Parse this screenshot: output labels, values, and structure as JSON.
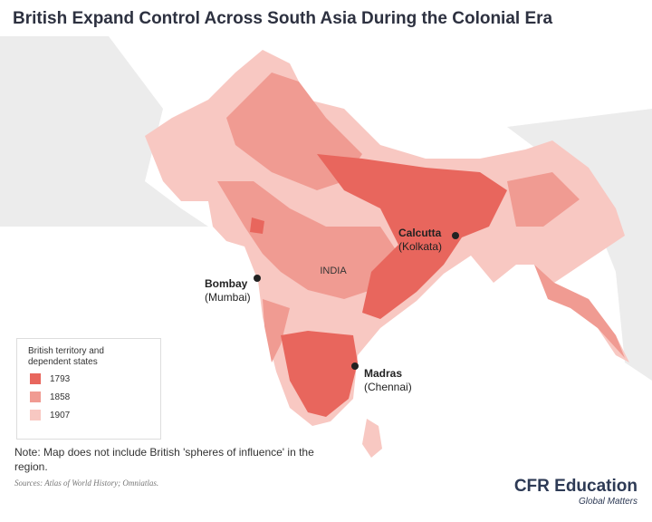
{
  "title": "British Expand Control Across South Asia During the Colonial Era",
  "map": {
    "country_label": "INDIA",
    "cities": [
      {
        "name": "Calcutta",
        "local_name": "(Kolkata)"
      },
      {
        "name": "Bombay",
        "local_name": "(Mumbai)"
      },
      {
        "name": "Madras",
        "local_name": "(Chennai)"
      }
    ]
  },
  "legend": {
    "title": "British territory and dependent states",
    "items": [
      {
        "label": "1793",
        "color": "#e8665d"
      },
      {
        "label": "1858",
        "color": "#f09b92"
      },
      {
        "label": "1907",
        "color": "#f8c8c2"
      }
    ]
  },
  "note": "Note: Map does not include British 'spheres of influence' in the region.",
  "sources": "Sources: Atlas of World History; Omniatlas.",
  "logo": {
    "name": "CFR Education",
    "tagline": "Global Matters"
  }
}
